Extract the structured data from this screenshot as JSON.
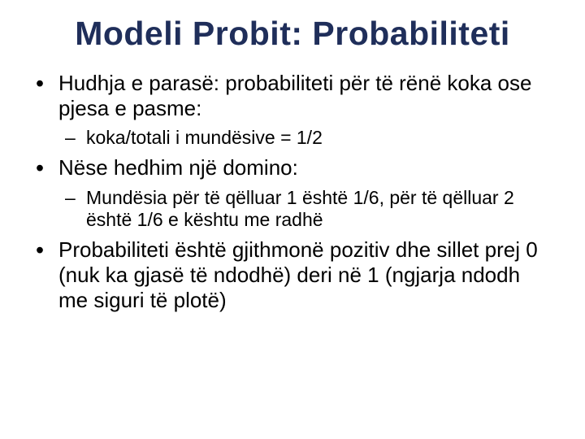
{
  "title": {
    "text": "Modeli Probit: Probabiliteti",
    "color": "#1f2e5a",
    "fontsize": 41
  },
  "body": {
    "color": "#000000",
    "fontsize_l1": 26,
    "fontsize_l2": 23,
    "line_height": 1.18
  },
  "bullets": [
    {
      "text": "Hudhja e parasë: probabiliteti për të rënë koka ose pjesa e pasme:",
      "sub": [
        {
          "text": " koka/totali i mundësive = 1/2"
        }
      ]
    },
    {
      "text": "Nëse hedhim një domino:",
      "sub": [
        {
          "text": "Mundësia për të qëlluar 1 është 1/6, për të qëlluar 2 është 1/6 e kështu me radhë"
        }
      ]
    },
    {
      "text": "Probabiliteti është gjithmonë pozitiv dhe sillet prej 0 (nuk ka gjasë të ndodhë) deri në 1 (ngjarja ndodh me siguri të plotë)",
      "sub": []
    }
  ]
}
